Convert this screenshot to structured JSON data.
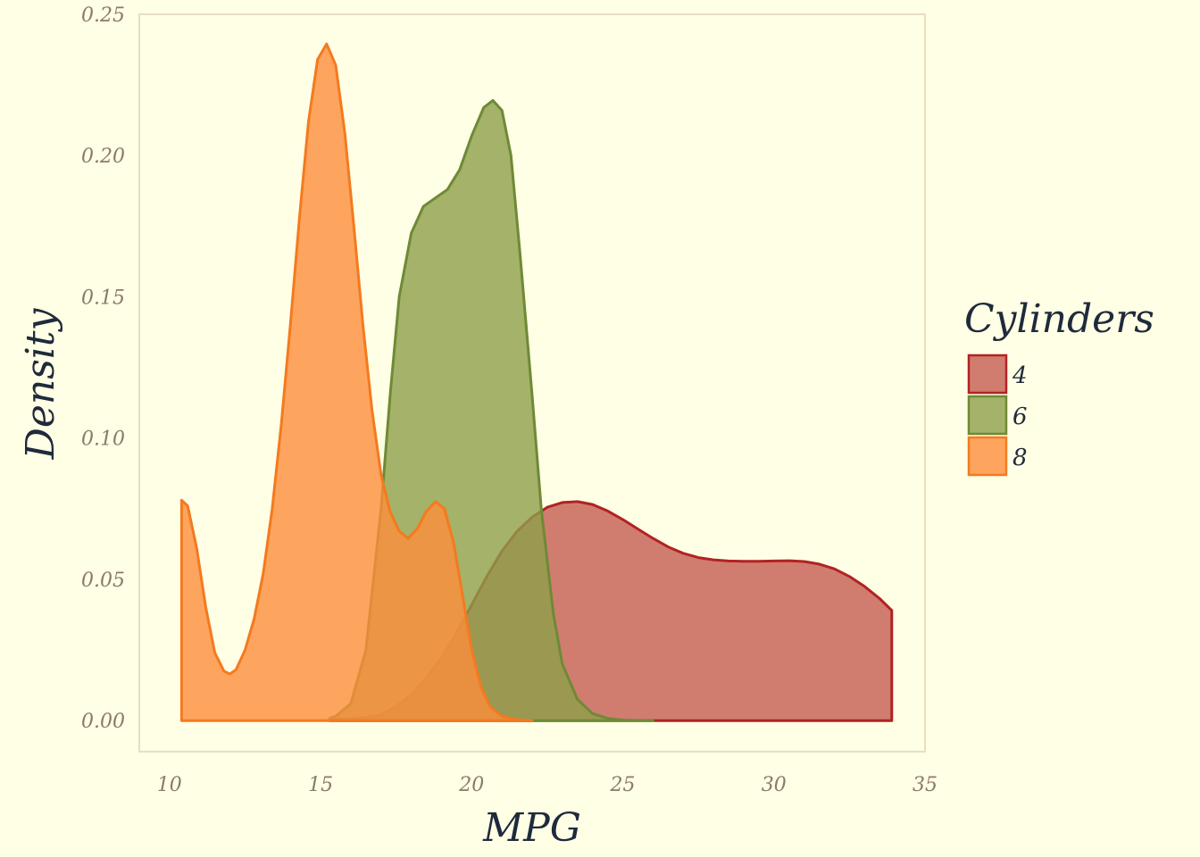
{
  "chart_data": {
    "type": "area",
    "subtype": "density",
    "title": "",
    "xlabel": "MPG",
    "ylabel": "Density",
    "xlim": [
      9,
      35
    ],
    "ylim": [
      -0.011,
      0.25
    ],
    "x_ticks": [
      10,
      15,
      20,
      25,
      30,
      35
    ],
    "y_ticks": [
      0.0,
      0.05,
      0.1,
      0.15,
      0.2,
      0.25
    ],
    "x_tick_labels": [
      "10",
      "15",
      "20",
      "25",
      "30",
      "35"
    ],
    "y_tick_labels": [
      "0.00",
      "0.05",
      "0.10",
      "0.15",
      "0.20",
      "0.25"
    ],
    "grid": false,
    "legend": {
      "title": "Cylinders",
      "position": "right"
    },
    "series": [
      {
        "name": "4",
        "color": "#b22222",
        "fill": "#c45c52",
        "points": [
          [
            15.3,
            0.0003
          ],
          [
            16.5,
            0.001
          ],
          [
            17.0,
            0.002
          ],
          [
            17.5,
            0.005
          ],
          [
            18.0,
            0.009
          ],
          [
            18.5,
            0.015
          ],
          [
            19.0,
            0.022
          ],
          [
            19.5,
            0.031
          ],
          [
            20.0,
            0.041
          ],
          [
            20.5,
            0.051
          ],
          [
            21.0,
            0.06
          ],
          [
            21.5,
            0.067
          ],
          [
            22.0,
            0.072
          ],
          [
            22.5,
            0.0755
          ],
          [
            23.0,
            0.0772
          ],
          [
            23.5,
            0.0775
          ],
          [
            24.0,
            0.0765
          ],
          [
            24.5,
            0.0742
          ],
          [
            25.0,
            0.0712
          ],
          [
            25.5,
            0.0678
          ],
          [
            26.0,
            0.0645
          ],
          [
            26.5,
            0.0615
          ],
          [
            27.0,
            0.0592
          ],
          [
            27.5,
            0.0577
          ],
          [
            28.0,
            0.0569
          ],
          [
            28.5,
            0.0565
          ],
          [
            29.0,
            0.0564
          ],
          [
            29.5,
            0.0564
          ],
          [
            30.0,
            0.0565
          ],
          [
            30.5,
            0.0566
          ],
          [
            31.0,
            0.0563
          ],
          [
            31.5,
            0.0554
          ],
          [
            32.0,
            0.0537
          ],
          [
            32.5,
            0.051
          ],
          [
            33.0,
            0.0475
          ],
          [
            33.5,
            0.0432
          ],
          [
            33.9,
            0.039
          ]
        ]
      },
      {
        "name": "6",
        "color": "#6e8a35",
        "fill": "#8d9f4b",
        "points": [
          [
            15.3,
            0.0008
          ],
          [
            15.5,
            0.0015
          ],
          [
            16.0,
            0.006
          ],
          [
            16.5,
            0.025
          ],
          [
            17.0,
            0.075
          ],
          [
            17.3,
            0.115
          ],
          [
            17.6,
            0.15
          ],
          [
            18.0,
            0.1725
          ],
          [
            18.4,
            0.182
          ],
          [
            18.8,
            0.185
          ],
          [
            19.2,
            0.188
          ],
          [
            19.6,
            0.195
          ],
          [
            20.0,
            0.207
          ],
          [
            20.4,
            0.217
          ],
          [
            20.7,
            0.2195
          ],
          [
            21.0,
            0.216
          ],
          [
            21.3,
            0.2
          ],
          [
            21.6,
            0.165
          ],
          [
            22.0,
            0.115
          ],
          [
            22.3,
            0.075
          ],
          [
            22.7,
            0.038
          ],
          [
            23.0,
            0.02
          ],
          [
            23.5,
            0.0075
          ],
          [
            24.0,
            0.0025
          ],
          [
            24.5,
            0.0008
          ],
          [
            25.0,
            0.0002
          ],
          [
            26.0,
            0.0
          ]
        ]
      },
      {
        "name": "8",
        "color": "#f47a1f",
        "fill": "#fd8d3c",
        "points": [
          [
            10.4,
            0.078
          ],
          [
            10.6,
            0.076
          ],
          [
            10.9,
            0.061
          ],
          [
            11.2,
            0.04
          ],
          [
            11.5,
            0.024
          ],
          [
            11.8,
            0.0175
          ],
          [
            12.0,
            0.0165
          ],
          [
            12.2,
            0.018
          ],
          [
            12.5,
            0.025
          ],
          [
            12.8,
            0.036
          ],
          [
            13.1,
            0.052
          ],
          [
            13.4,
            0.075
          ],
          [
            13.7,
            0.105
          ],
          [
            14.0,
            0.14
          ],
          [
            14.3,
            0.178
          ],
          [
            14.6,
            0.212
          ],
          [
            14.9,
            0.234
          ],
          [
            15.2,
            0.2395
          ],
          [
            15.5,
            0.232
          ],
          [
            15.8,
            0.208
          ],
          [
            16.1,
            0.175
          ],
          [
            16.4,
            0.14
          ],
          [
            16.7,
            0.11
          ],
          [
            17.0,
            0.087
          ],
          [
            17.3,
            0.074
          ],
          [
            17.6,
            0.067
          ],
          [
            17.9,
            0.0645
          ],
          [
            18.2,
            0.068
          ],
          [
            18.5,
            0.074
          ],
          [
            18.8,
            0.0775
          ],
          [
            19.1,
            0.075
          ],
          [
            19.4,
            0.063
          ],
          [
            19.7,
            0.044
          ],
          [
            20.0,
            0.025
          ],
          [
            20.3,
            0.012
          ],
          [
            20.6,
            0.005
          ],
          [
            21.0,
            0.0015
          ],
          [
            21.5,
            0.0003
          ],
          [
            22.0,
            0.0
          ]
        ]
      }
    ]
  }
}
